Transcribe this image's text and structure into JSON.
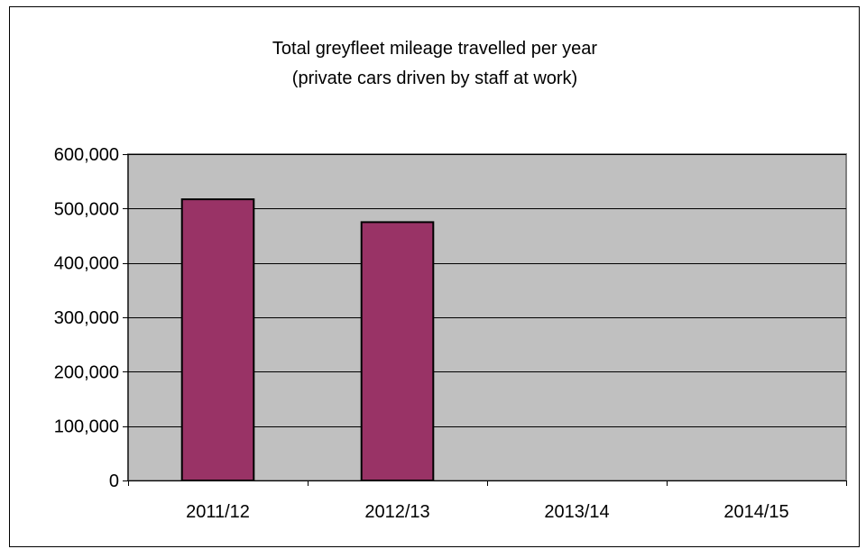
{
  "chart_data": {
    "type": "bar",
    "title_lines": [
      "Total greyfleet mileage travelled per year",
      "(private cars driven by staff at work)"
    ],
    "categories": [
      "2011/12",
      "2012/13",
      "2013/14",
      "2014/15"
    ],
    "values": [
      517000,
      475000,
      null,
      null
    ],
    "ylim": [
      0,
      600000
    ],
    "yticks": [
      0,
      100000,
      200000,
      300000,
      400000,
      500000,
      600000
    ],
    "ytick_labels": [
      "0",
      "100,000",
      "200,000",
      "300,000",
      "400,000",
      "500,000",
      "600,000"
    ],
    "grid": true,
    "legend": "none",
    "colors": {
      "bar_fill": "#993366",
      "bar_stroke": "#000000",
      "plot_background": "#c0c0c0",
      "gridline": "#000000"
    }
  }
}
